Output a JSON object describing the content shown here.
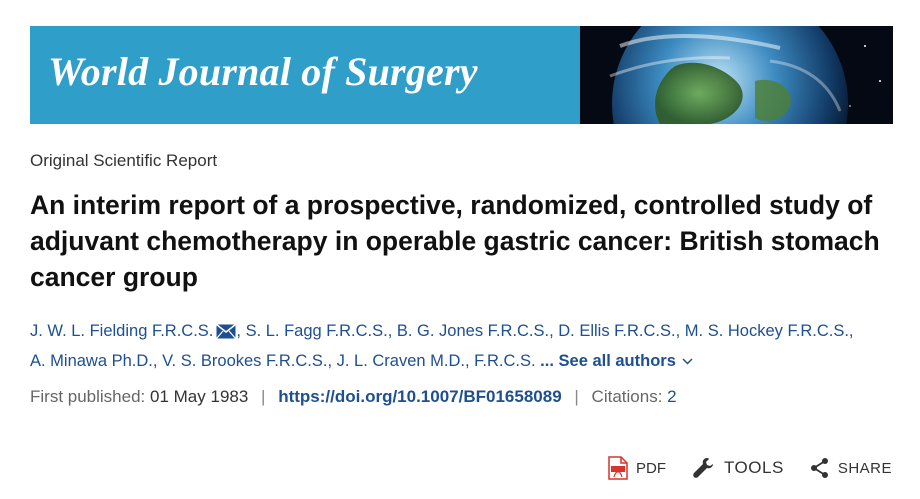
{
  "banner": {
    "journal_name": "World Journal of Surgery",
    "colors": {
      "background": "#2f9ec8",
      "text": "#ffffff"
    },
    "art_icon": "earth-from-space-image"
  },
  "article": {
    "type": "Original Scientific Report",
    "title": "An interim report of a prospective, randomized, controlled study of adjuvant chemotherapy in operable gastric cancer: British stomach cancer group",
    "authors": [
      {
        "name": "J. W. L. Fielding F.R.C.S.",
        "has_email": true
      },
      {
        "name": "S. L. Fagg F.R.C.S."
      },
      {
        "name": "B. G. Jones F.R.C.S."
      },
      {
        "name": "D. Ellis F.R.C.S."
      },
      {
        "name": "M. S. Hockey F.R.C.S."
      },
      {
        "name": "A. Minawa Ph.D."
      },
      {
        "name": "V. S. Brookes F.R.C.S."
      },
      {
        "name": "J. L. Craven M.D., F.R.C.S."
      }
    ],
    "see_all_label": "... See all authors",
    "meta": {
      "first_published_label": "First published:",
      "first_published_value": "01 May 1983",
      "separator": "|",
      "doi": "https://doi.org/10.1007/BF01658089",
      "citations_label": "Citations:",
      "citations_value": "2"
    }
  },
  "toolbar": {
    "pdf_label": "PDF",
    "tools_label": "TOOLS",
    "share_label": "SHARE"
  },
  "colors": {
    "link": "#1d4f91",
    "pdf_icon": "#d9342b"
  }
}
